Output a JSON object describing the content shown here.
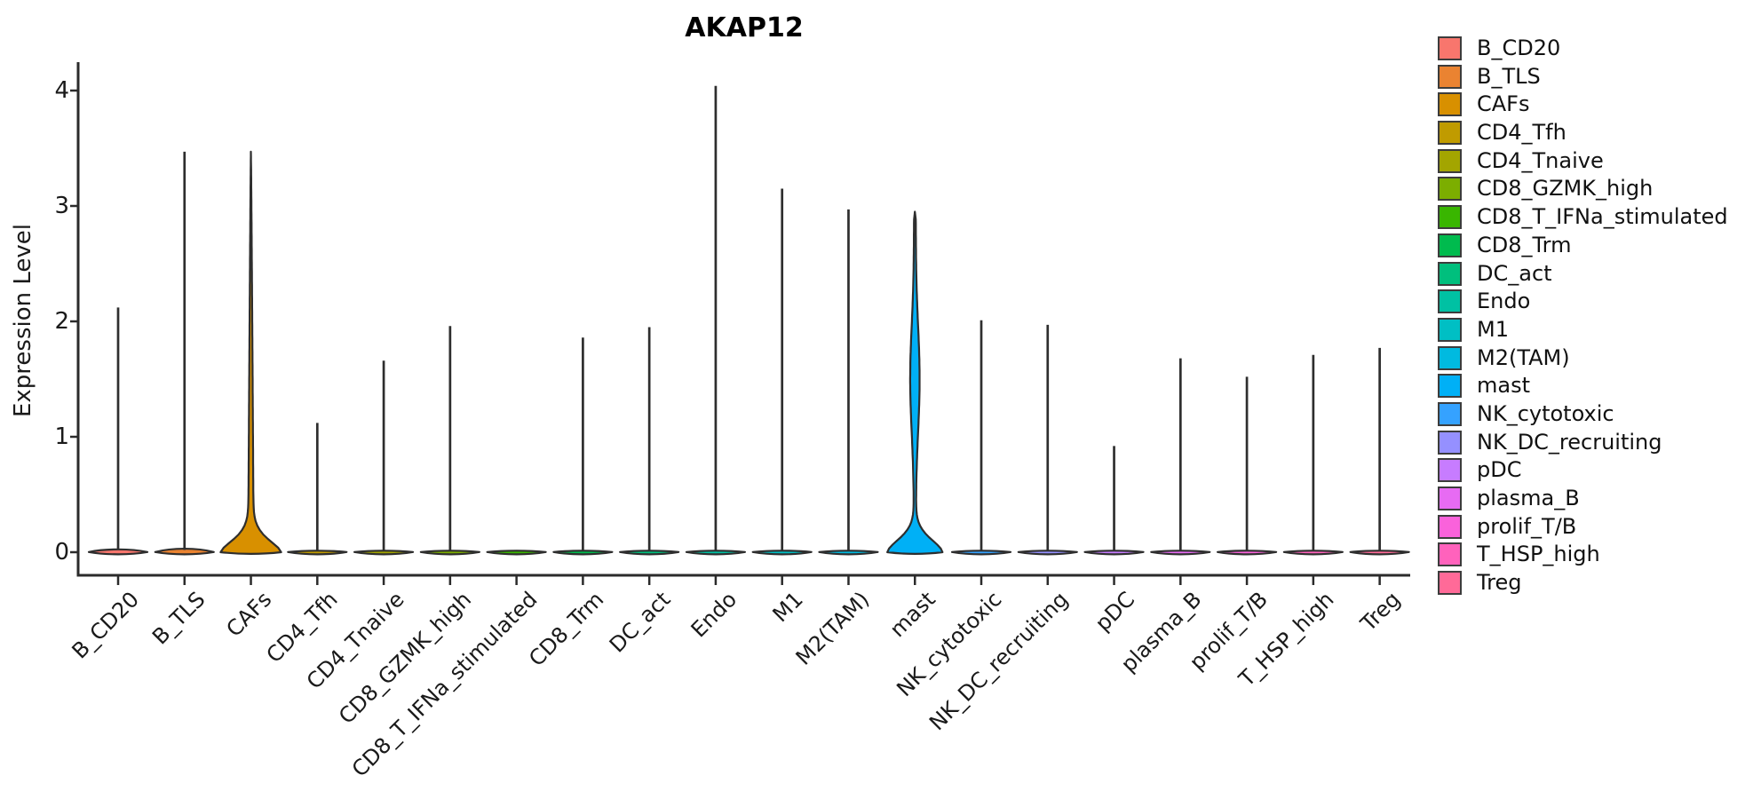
{
  "chart_data": {
    "type": "violin",
    "title": "AKAP12",
    "xlabel": "",
    "ylabel": "Expression Level",
    "ylim": [
      -0.2,
      4.25
    ],
    "yticks": [
      0,
      1,
      2,
      3,
      4
    ],
    "grid": false,
    "legend_position": "right",
    "axis_color": "#2b2b2b",
    "outline_color": "#2e2e2e",
    "text_color": "#1a1a1a",
    "categories": [
      "B_CD20",
      "B_TLS",
      "CAFs",
      "CD4_Tfh",
      "CD4_Tnaive",
      "CD8_GZMK_high",
      "CD8_T_IFNa_stimulated",
      "CD8_Trm",
      "DC_act",
      "Endo",
      "M1",
      "M2(TAM)",
      "mast",
      "NK_cytotoxic",
      "NK_DC_recruiting",
      "pDC",
      "plasma_B",
      "prolif_T/B",
      "T_HSP_high",
      "Treg"
    ],
    "violins": [
      {
        "label": "B_CD20",
        "color": "#F8766D",
        "max_expression": 2.12,
        "shape": "flat_spike",
        "base_bump": 4
      },
      {
        "label": "B_TLS",
        "color": "#EA8331",
        "max_expression": 3.47,
        "shape": "flat_spike",
        "base_bump": 5
      },
      {
        "label": "CAFs",
        "color": "#D89000",
        "max_expression": 3.47,
        "shape": "trumpet",
        "base_bump": 2
      },
      {
        "label": "CD4_Tfh",
        "color": "#C09B00",
        "max_expression": 1.12,
        "shape": "flat_spike",
        "base_bump": 2
      },
      {
        "label": "CD4_Tnaive",
        "color": "#A3A500",
        "max_expression": 1.66,
        "shape": "flat_spike",
        "base_bump": 2
      },
      {
        "label": "CD8_GZMK_high",
        "color": "#7CAE00",
        "max_expression": 1.96,
        "shape": "flat_spike",
        "base_bump": 2
      },
      {
        "label": "CD8_T_IFNa_stimulated",
        "color": "#39B600",
        "max_expression": 0.03,
        "shape": "flat_spike",
        "base_bump": 2
      },
      {
        "label": "CD8_Trm",
        "color": "#00BB4E",
        "max_expression": 1.86,
        "shape": "flat_spike",
        "base_bump": 2
      },
      {
        "label": "DC_act",
        "color": "#00BF7D",
        "max_expression": 1.95,
        "shape": "flat_spike",
        "base_bump": 2
      },
      {
        "label": "Endo",
        "color": "#00C1A3",
        "max_expression": 4.04,
        "shape": "flat_spike",
        "base_bump": 2
      },
      {
        "label": "M1",
        "color": "#00BFC4",
        "max_expression": 3.15,
        "shape": "flat_spike",
        "base_bump": 2
      },
      {
        "label": "M2(TAM)",
        "color": "#00BAE0",
        "max_expression": 2.97,
        "shape": "flat_spike",
        "base_bump": 2
      },
      {
        "label": "mast",
        "color": "#00B0F6",
        "max_expression": 2.95,
        "shape": "base_spindle",
        "base_bump": 2
      },
      {
        "label": "NK_cytotoxic",
        "color": "#35A2FF",
        "max_expression": 2.01,
        "shape": "flat_spike",
        "base_bump": 2
      },
      {
        "label": "NK_DC_recruiting",
        "color": "#9590FF",
        "max_expression": 1.97,
        "shape": "flat_spike",
        "base_bump": 2
      },
      {
        "label": "pDC",
        "color": "#C77CFF",
        "max_expression": 0.92,
        "shape": "flat_spike",
        "base_bump": 2
      },
      {
        "label": "plasma_B",
        "color": "#E76BF3",
        "max_expression": 1.68,
        "shape": "flat_spike",
        "base_bump": 2
      },
      {
        "label": "prolif_T/B",
        "color": "#FA62DB",
        "max_expression": 1.52,
        "shape": "flat_spike",
        "base_bump": 2
      },
      {
        "label": "T_HSP_high",
        "color": "#FF62BC",
        "max_expression": 1.71,
        "shape": "flat_spike",
        "base_bump": 2
      },
      {
        "label": "Treg",
        "color": "#FF6A98",
        "max_expression": 1.77,
        "shape": "flat_spike",
        "base_bump": 2
      }
    ]
  }
}
